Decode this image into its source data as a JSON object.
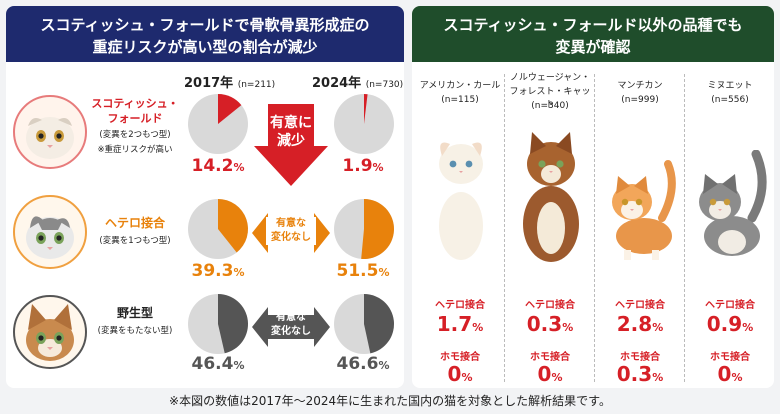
{
  "left": {
    "title_line1": "スコティッシュ・フォールドで骨軟骨異形成症の",
    "title_line2": "重症リスクが高い型の割合が減少",
    "year1": "2017年",
    "year1_n": "(n=211)",
    "year2": "2024年",
    "year2_n": "(n=730)",
    "rows": [
      {
        "name_line1": "スコティッシュ・",
        "name_line2": "フォールド",
        "sub": "(変異を2つもつ型)",
        "note": "※重症リスクが高い",
        "arrow_line1": "有意に",
        "arrow_line2": "減少"
      },
      {
        "name_line1": "ヘテロ接合",
        "name_line2": "",
        "sub": "(変異を1つもつ型)",
        "note": "",
        "arrow_line1": "有意な",
        "arrow_line2": "変化なし"
      },
      {
        "name_line1": "野生型",
        "name_line2": "",
        "sub": "(変異をもたない型)",
        "note": "",
        "arrow_line1": "有意な",
        "arrow_line2": "変化なし"
      }
    ]
  },
  "right": {
    "title_line1": "スコティッシュ・フォールド以外の品種でも",
    "title_line2": "変異が確認",
    "hetero_label": "ヘテロ接合",
    "homo_label": "ホモ接合",
    "breeds": [
      {
        "name_line1": "アメリカン・カール",
        "name_line2": "(n=115)",
        "hetero": "1.7",
        "homo": "0"
      },
      {
        "name_line1": "ノルウェージャン・",
        "name_line2": "フォレスト・キャット",
        "name_line3": "(n=340)",
        "hetero": "0.3",
        "homo": "0"
      },
      {
        "name_line1": "マンチカン",
        "name_line2": "(n=999)",
        "hetero": "2.8",
        "homo": "0.3"
      },
      {
        "name_line1": "ミヌエット",
        "name_line2": "(n=556)",
        "hetero": "0.9",
        "homo": "0"
      }
    ]
  },
  "footer": "※本図の数値は2017年〜2024年に生まれた国内の猫を対象とした解析結果です。",
  "colors": {
    "red": "#d61f26",
    "orange": "#e8820c",
    "dark": "#555555",
    "pie_bg": "#d9d9d9",
    "navy": "#1e2a6e",
    "green": "#1f4d2b"
  },
  "chart_data": {
    "type": "pie",
    "categories": [
      "2017年",
      "2024年"
    ],
    "series": [
      {
        "name": "スコティッシュ・フォールド",
        "values": [
          14.2,
          1.9
        ]
      },
      {
        "name": "ヘテロ接合",
        "values": [
          39.3,
          51.5
        ]
      },
      {
        "name": "野生型",
        "values": [
          46.4,
          46.6
        ]
      }
    ],
    "breed_rates": {
      "categories": [
        "アメリカン・カール",
        "ノルウェージャン・フォレスト・キャット",
        "マンチカン",
        "ミヌエット"
      ],
      "series": [
        {
          "name": "ヘテロ接合",
          "values": [
            1.7,
            0.3,
            2.8,
            0.9
          ]
        },
        {
          "name": "ホモ接合",
          "values": [
            0,
            0,
            0.3,
            0
          ]
        }
      ]
    },
    "unit": "%"
  }
}
